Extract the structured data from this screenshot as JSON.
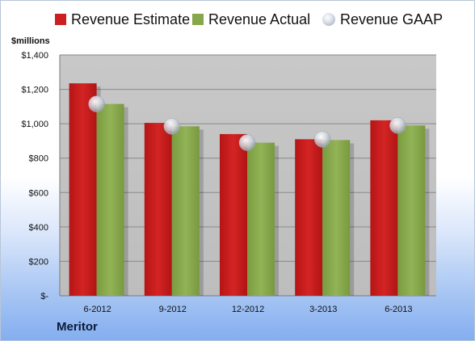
{
  "chart_data": {
    "type": "bar",
    "categories": [
      "6-2012",
      "9-2012",
      "12-2012",
      "3-2013",
      "6-2013"
    ],
    "series": [
      {
        "name": "Revenue Estimate",
        "type": "bar",
        "color": "#cc1f1f",
        "values": [
          1235,
          1005,
          940,
          910,
          1020
        ]
      },
      {
        "name": "Revenue Actual",
        "type": "bar",
        "color": "#86a84a",
        "values": [
          1115,
          985,
          890,
          905,
          990
        ]
      },
      {
        "name": "Revenue GAAP",
        "type": "scatter",
        "color": "#c8cdd6",
        "values": [
          1115,
          985,
          890,
          910,
          990
        ]
      }
    ],
    "ylabel": "$millions",
    "ylim": [
      0,
      1400
    ],
    "yticks": [
      0,
      200,
      400,
      600,
      800,
      1000,
      1200,
      1400
    ],
    "ytick_labels": [
      "$-",
      "$200",
      "$400",
      "$600",
      "$800",
      "$1,000",
      "$1,200",
      "$1,400"
    ],
    "grid": true,
    "legend": "top"
  },
  "legend": {
    "items": [
      "Revenue Estimate",
      "Revenue Actual",
      "Revenue GAAP"
    ]
  },
  "company": "Meritor"
}
